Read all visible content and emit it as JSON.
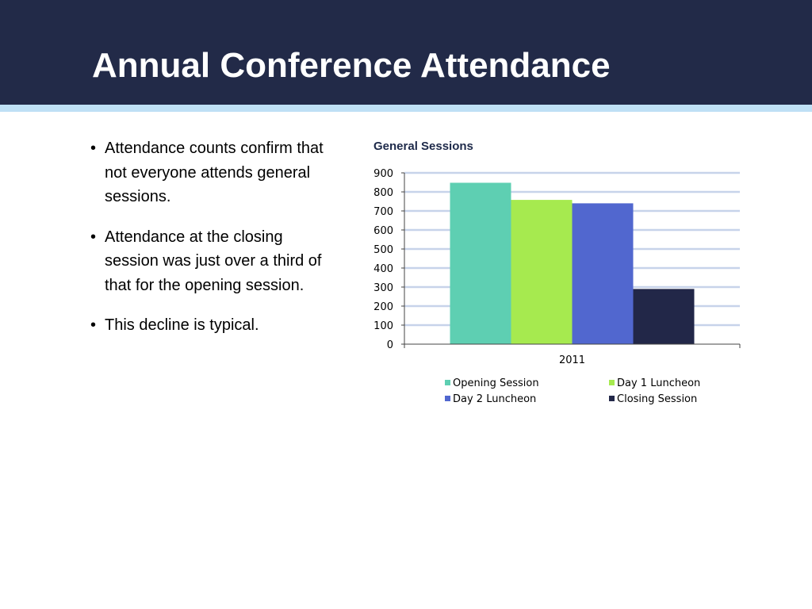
{
  "slide": {
    "title": "Annual Conference Attendance",
    "bullets": [
      "Attendance counts confirm that not everyone attends general sessions.",
      "Attendance at the closing session was just over a third of that for the opening session.",
      "This decline is typical."
    ]
  },
  "colors": {
    "header": "#222a48",
    "stripe": "#bfe0f5"
  },
  "chart_data": {
    "type": "bar",
    "title": "General Sessions",
    "categories": [
      "2011"
    ],
    "series": [
      {
        "name": "Opening Session",
        "values": [
          848
        ],
        "color": "#5ecfb2"
      },
      {
        "name": "Day 1 Luncheon",
        "values": [
          758
        ],
        "color": "#a6ea4f"
      },
      {
        "name": "Day 2 Luncheon",
        "values": [
          740
        ],
        "color": "#5167cf"
      },
      {
        "name": "Closing Session",
        "values": [
          290
        ],
        "color": "#222748"
      }
    ],
    "xlabel": "",
    "ylabel": "",
    "ylim": [
      0,
      900
    ],
    "yticks": [
      "0",
      "100",
      "200",
      "300",
      "400",
      "500",
      "600",
      "700",
      "800",
      "900"
    ],
    "grid": true,
    "legend": "bottom"
  }
}
